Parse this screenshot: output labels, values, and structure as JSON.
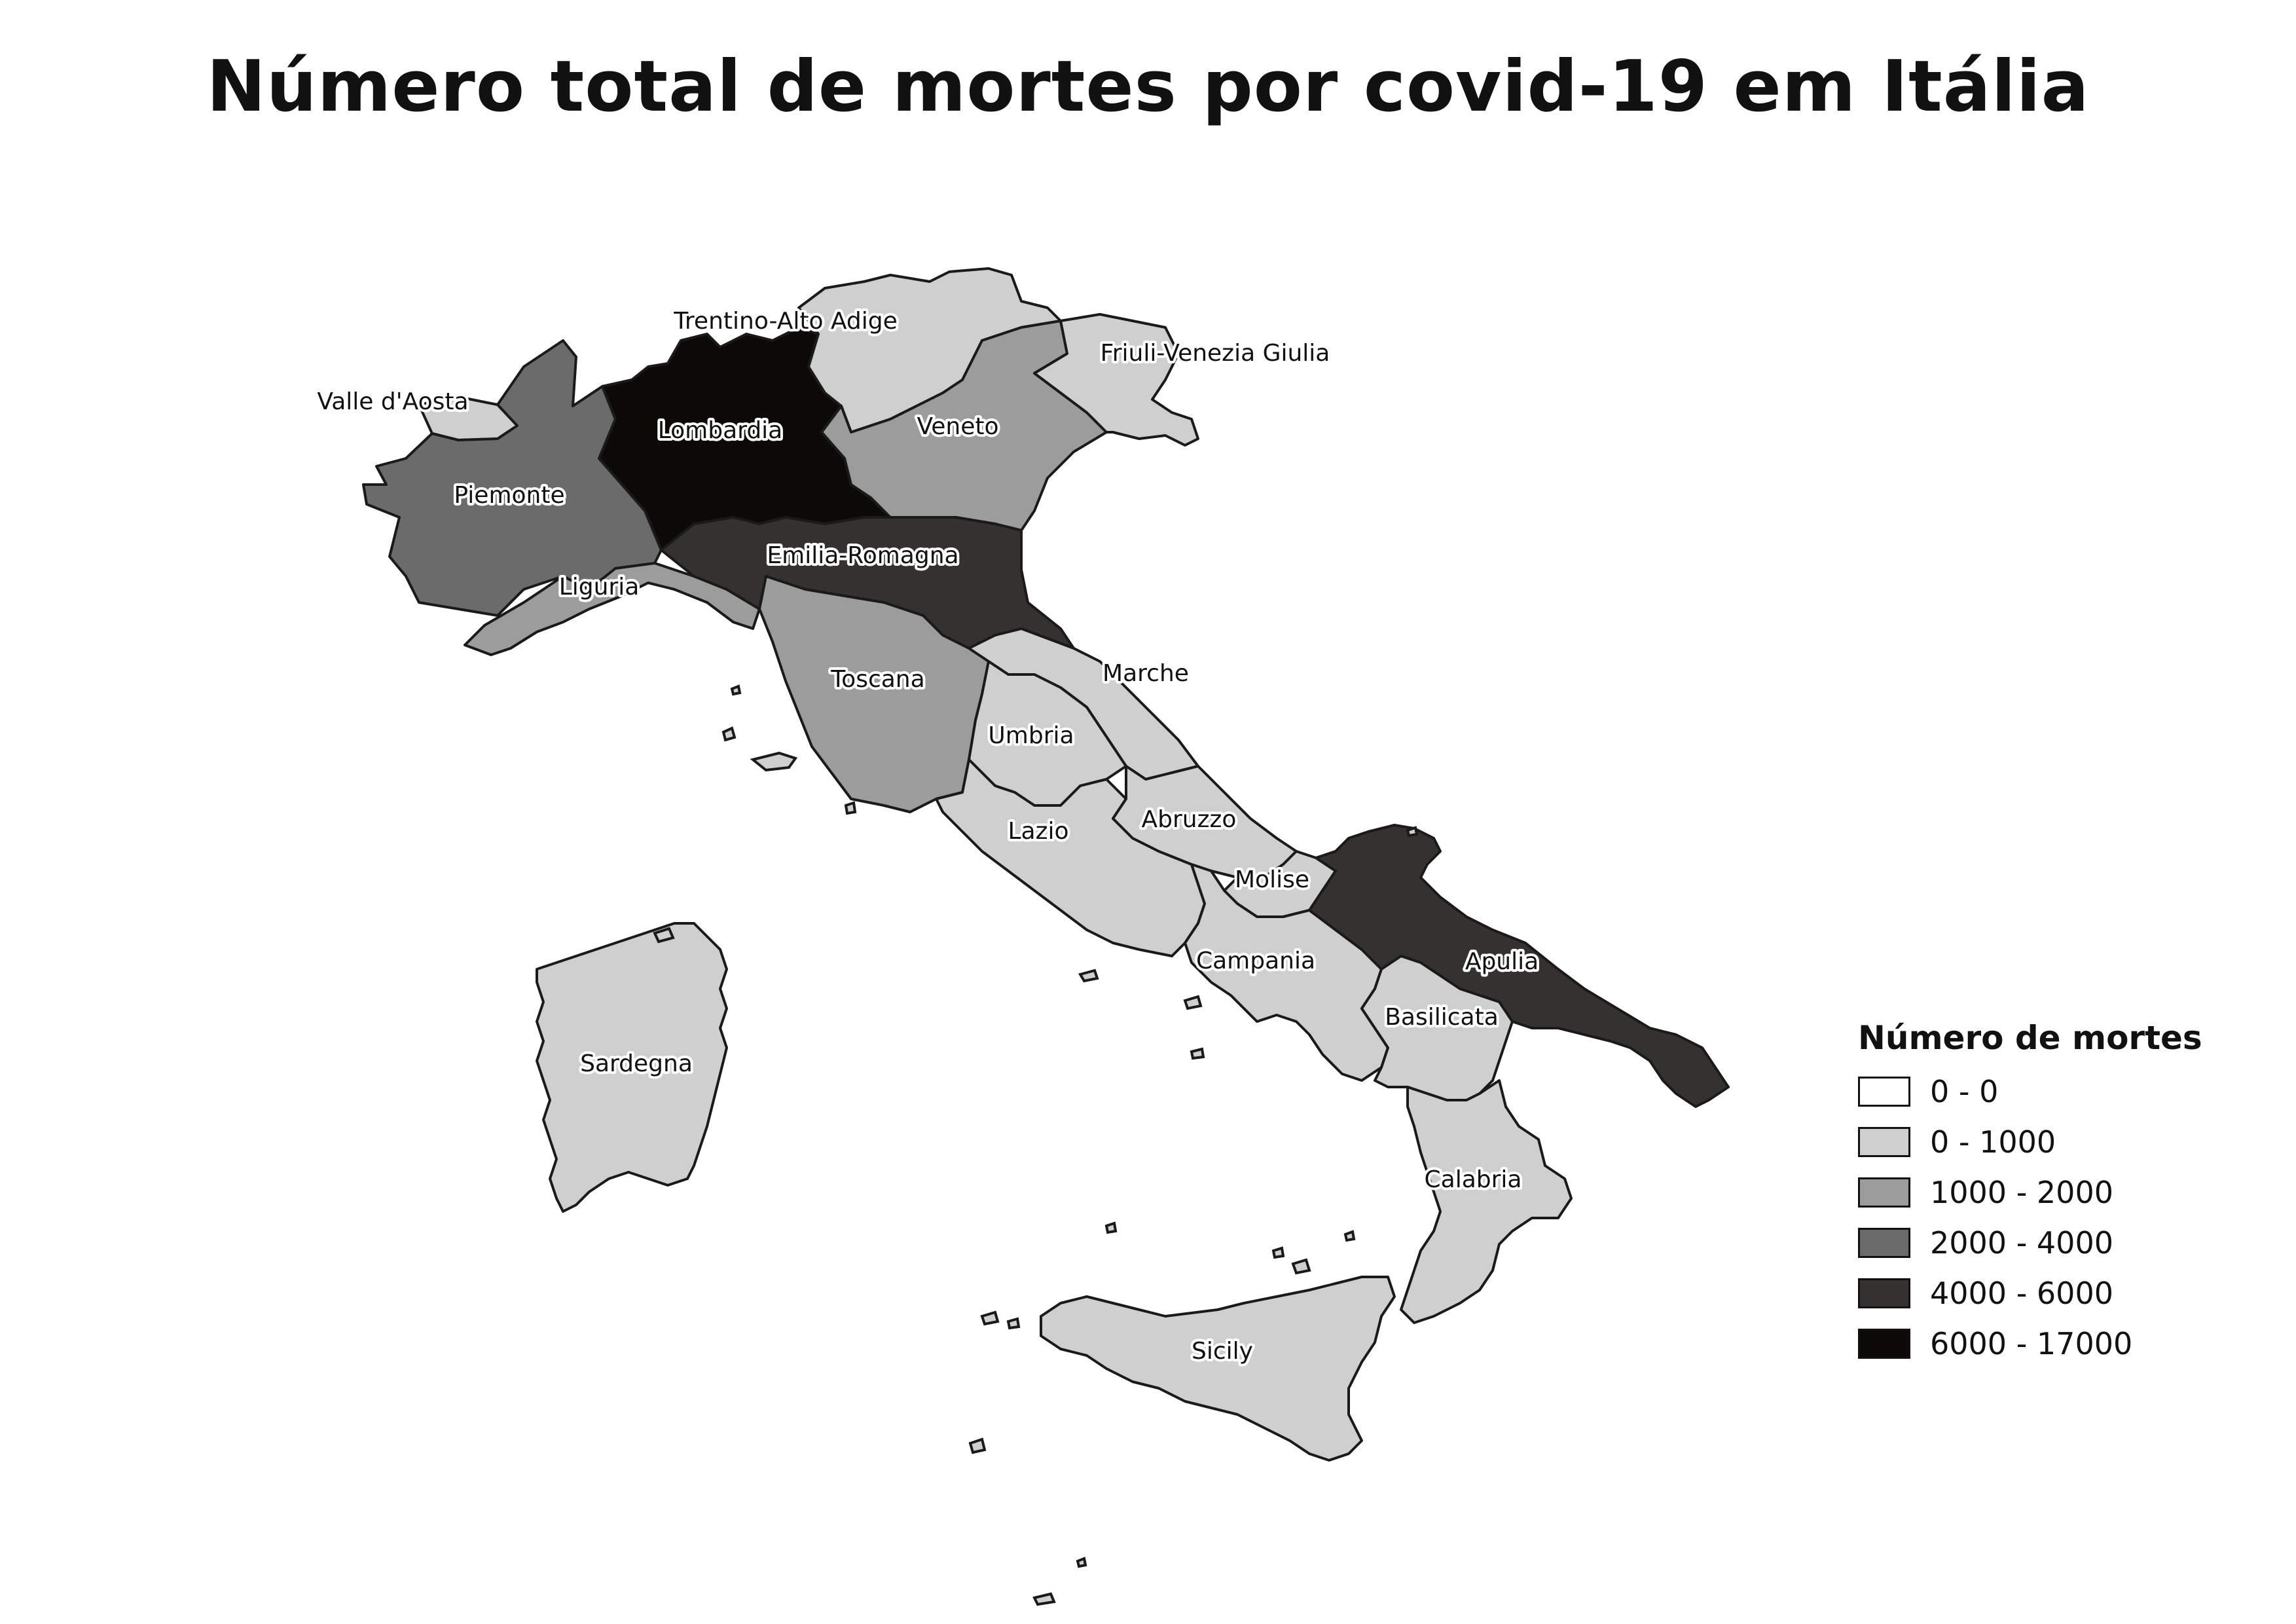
{
  "title": "Número total de mortes por covid-19 em Itália",
  "legend": {
    "title": "Número de mortes",
    "classes": [
      {
        "label": "0 - 0",
        "color": "#ffffff"
      },
      {
        "label": "0 - 1000",
        "color": "#cfcfcf"
      },
      {
        "label": "1000 - 2000",
        "color": "#9c9c9c"
      },
      {
        "label": "2000 - 4000",
        "color": "#6b6b6b"
      },
      {
        "label": "4000 - 6000",
        "color": "#343130"
      },
      {
        "label": "6000 - 17000",
        "color": "#0d0906"
      }
    ]
  },
  "regions": [
    {
      "name": "Valle d'Aosta",
      "class": 1
    },
    {
      "name": "Piemonte",
      "class": 3
    },
    {
      "name": "Liguria",
      "class": 2
    },
    {
      "name": "Lombardia",
      "class": 5
    },
    {
      "name": "Trentino-Alto Adige",
      "class": 1
    },
    {
      "name": "Veneto",
      "class": 2
    },
    {
      "name": "Friuli-Venezia Giulia",
      "class": 1
    },
    {
      "name": "Emilia-Romagna",
      "class": 4
    },
    {
      "name": "Toscana",
      "class": 2
    },
    {
      "name": "Marche",
      "class": 1
    },
    {
      "name": "Umbria",
      "class": 1
    },
    {
      "name": "Lazio",
      "class": 1
    },
    {
      "name": "Abruzzo",
      "class": 1
    },
    {
      "name": "Molise",
      "class": 1
    },
    {
      "name": "Campania",
      "class": 1
    },
    {
      "name": "Apulia",
      "class": 4
    },
    {
      "name": "Basilicata",
      "class": 1
    },
    {
      "name": "Calabria",
      "class": 1
    },
    {
      "name": "Sicily",
      "class": 1
    },
    {
      "name": "Sardegna",
      "class": 1
    }
  ]
}
